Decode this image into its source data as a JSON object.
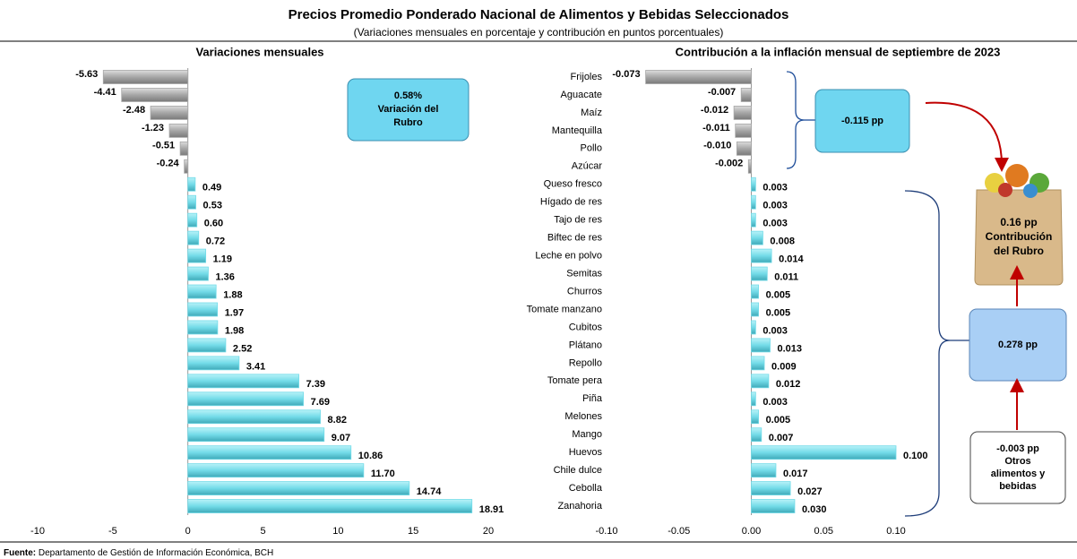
{
  "title": "Precios Promedio Ponderado Nacional de Alimentos y Bebidas Seleccionados",
  "subtitle": "(Variaciones mensuales en porcentaje y contribución en puntos porcentuales)",
  "chart_data": [
    {
      "type": "bar",
      "orientation": "horizontal",
      "title": "Variaciones mensuales",
      "categories": [
        "Frijoles",
        "Aguacate",
        "Maíz",
        "Mantequilla",
        "Pollo",
        "Azúcar",
        "Queso fresco",
        "Hígado de res",
        "Tajo de res",
        "Biftec de res",
        "Leche en polvo",
        "Semitas",
        "Churros",
        "Tomate manzano",
        "Cubitos",
        "Plátano",
        "Repollo",
        "Tomate pera",
        "Piña",
        "Melones",
        "Mango",
        "Huevos",
        "Chile dulce",
        "Cebolla",
        "Zanahoria"
      ],
      "values": [
        -5.63,
        -4.41,
        -2.48,
        -1.23,
        -0.51,
        -0.24,
        0.49,
        0.53,
        0.6,
        0.72,
        1.19,
        1.36,
        1.88,
        1.97,
        1.98,
        2.52,
        3.41,
        7.39,
        7.69,
        8.82,
        9.07,
        10.86,
        11.7,
        14.74,
        18.91
      ],
      "value_labels": [
        "-5.63",
        "-4.41",
        "-2.48",
        "-1.23",
        "-0.51",
        "-0.24",
        "0.49",
        "0.53",
        "0.60",
        "0.72",
        "1.19",
        "1.36",
        "1.88",
        "1.97",
        "1.98",
        "2.52",
        "3.41",
        "7.39",
        "7.69",
        "8.82",
        "9.07",
        "10.86",
        "11.70",
        "14.74",
        "18.91"
      ],
      "color": "#73dbe8",
      "negative_color": "#a6a6a6",
      "xlim": [
        -10,
        20
      ],
      "xticks": [
        -10,
        -5,
        0,
        5,
        10,
        15,
        20
      ]
    },
    {
      "type": "bar",
      "orientation": "horizontal",
      "title": "Contribución a la inflación mensual de septiembre de 2023",
      "values": [
        -0.073,
        -0.007,
        -0.012,
        -0.011,
        -0.01,
        -0.002,
        0.003,
        0.003,
        0.003,
        0.008,
        0.014,
        0.011,
        0.005,
        0.005,
        0.003,
        0.013,
        0.009,
        0.012,
        0.003,
        0.005,
        0.007,
        0.1,
        0.017,
        0.027,
        0.03
      ],
      "value_labels": [
        "-0.073",
        "-0.007",
        "-0.012",
        "-0.011",
        "-0.010",
        "-0.002",
        "0.003",
        "0.003",
        "0.003",
        "0.008",
        "0.014",
        "0.011",
        "0.005",
        "0.005",
        "0.003",
        "0.013",
        "0.009",
        "0.012",
        "0.003",
        "0.005",
        "0.007",
        "0.100",
        "0.017",
        "0.027",
        "0.030"
      ],
      "color": "#73dbe8",
      "negative_color": "#a6a6a6",
      "xlim": [
        -0.1,
        0.1
      ],
      "xticks": [
        {
          "value": -0.1,
          "label": "-0.10"
        },
        {
          "value": -0.05,
          "label": "-0.05"
        },
        {
          "value": 0,
          "label": "0.00"
        },
        {
          "value": 0.05,
          "label": "0.05"
        },
        {
          "value": 0.1,
          "label": "0.10"
        }
      ]
    }
  ],
  "annotations": {
    "rubro_variation": [
      "0.58%",
      "Variación del",
      "Rubro"
    ],
    "negative_contribution": [
      "-0.115  pp"
    ],
    "positive_contribution": [
      "0.278  pp"
    ],
    "other_items": [
      "-0.003  pp",
      "Otros",
      "alimentos y",
      "bebidas"
    ],
    "total_contribution": [
      "0.16 pp",
      "Contribución",
      "del Rubro"
    ]
  },
  "source": {
    "label": "Fuente:",
    "text": "Departamento de Gestión de Información Económica, BCH"
  }
}
